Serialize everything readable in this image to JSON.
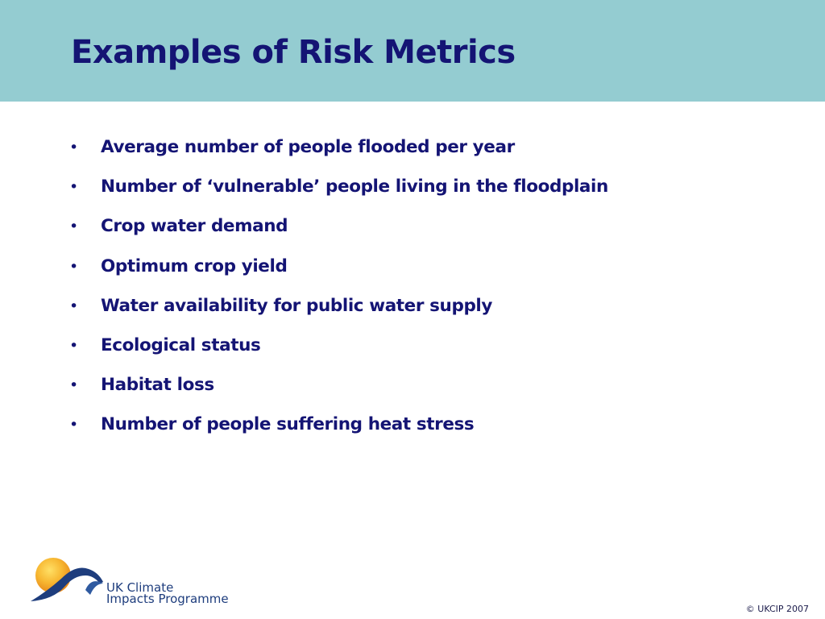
{
  "slide": {
    "title": "Examples of Risk Metrics",
    "bullet_symbol": "•",
    "bullets": [
      "Average number of people flooded per year",
      "Number of ‘vulnerable’ people living in the floodplain",
      "Crop water demand",
      "Optimum crop yield",
      "Water availability for public water supply",
      "Ecological status",
      "Habitat loss",
      "Number of people suffering heat stress"
    ]
  },
  "logo": {
    "line1": "UK Climate",
    "line2": "Impacts Programme"
  },
  "footer": {
    "copyright": "© UKCIP 2007"
  },
  "colors": {
    "header_band": "#94ccd1",
    "text_navy": "#141474",
    "logo_sun": "#f5a623",
    "logo_arc": "#1e3d7d"
  }
}
